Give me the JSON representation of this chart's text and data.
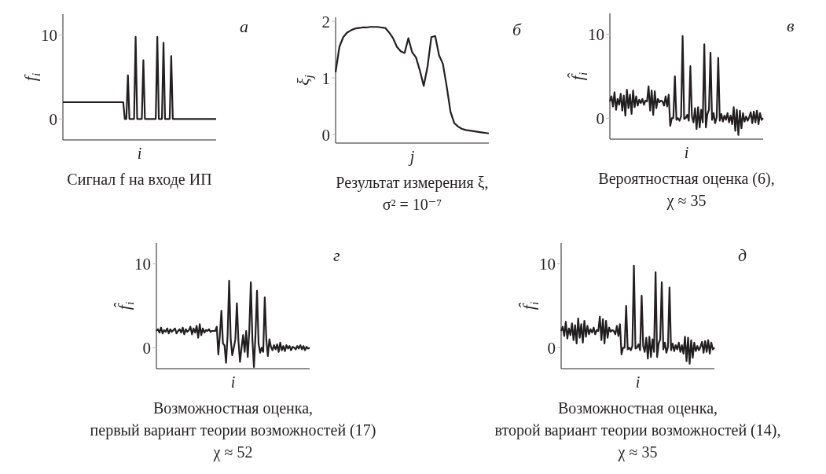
{
  "chart_data": [
    {
      "type": "line",
      "title": "Сигнал f на входе ИП",
      "xlabel": "i",
      "ylabel": "f$_{i}$",
      "annotations": [
        "а"
      ],
      "ylim": [
        -2.5,
        12.5
      ],
      "yticks": [
        0,
        10
      ],
      "categories": [
        null,
        null,
        null,
        null,
        null,
        null,
        null,
        null,
        null,
        null,
        null,
        null,
        null,
        null,
        null,
        null,
        null,
        null,
        null,
        null,
        null,
        null,
        null,
        null,
        null,
        null,
        null,
        null,
        null,
        null,
        null,
        null,
        null,
        null,
        null,
        null,
        null,
        null,
        null,
        null,
        null,
        null,
        null,
        null,
        null,
        null,
        null,
        null,
        null,
        null,
        null,
        null,
        null,
        null,
        null,
        null,
        null,
        null,
        null,
        null,
        null,
        null,
        null,
        null,
        null,
        null,
        null,
        null,
        null,
        null,
        null,
        null,
        null,
        null,
        null,
        null,
        null,
        null,
        null,
        null,
        null,
        null,
        null,
        null,
        null,
        null,
        null,
        null,
        null,
        null,
        null,
        null,
        null,
        null,
        null,
        null,
        null,
        null,
        null,
        null
      ],
      "series": [
        {
          "color": "#231f20",
          "values": [
            2,
            2,
            2,
            2,
            2,
            2,
            2,
            2,
            2,
            2,
            2,
            2,
            2,
            2,
            2,
            2,
            2,
            2,
            2,
            2,
            2,
            2,
            2,
            2,
            2,
            2,
            2,
            2,
            2,
            2,
            2,
            2,
            2,
            2,
            2,
            2,
            2,
            2,
            2,
            2,
            0,
            0,
            5.2,
            0,
            0,
            0,
            0,
            9.8,
            0,
            0,
            0,
            0,
            7,
            0,
            0,
            0,
            0,
            0,
            0,
            0,
            0,
            9.8,
            0,
            0,
            0,
            9.1,
            0,
            0,
            0,
            0,
            7.5,
            0,
            0,
            0,
            0,
            0,
            0,
            0,
            0,
            0,
            0,
            0,
            0,
            0,
            0,
            0,
            0,
            0,
            0,
            0,
            0,
            0,
            0,
            0,
            0,
            0,
            0,
            0,
            0,
            0
          ]
        }
      ]
    },
    {
      "type": "line",
      "title": "Результат измерения ξ,\nσ² = 10⁻⁷",
      "xlabel": "j",
      "ylabel": "ξ$_{j}$",
      "annotations": [
        "б"
      ],
      "ylim": [
        -0.15,
        2.07
      ],
      "yticks": [
        0,
        1,
        2
      ],
      "categories": [
        null,
        null,
        null,
        null,
        null,
        null,
        null,
        null,
        null,
        null,
        null,
        null,
        null,
        null,
        null,
        null,
        null,
        null,
        null,
        null,
        null,
        null,
        null,
        null,
        null,
        null,
        null,
        null,
        null,
        null,
        null,
        null,
        null,
        null,
        null,
        null,
        null,
        null,
        null,
        null,
        null
      ],
      "series": [
        {
          "color": "#231f20",
          "values": [
            1.1,
            1.55,
            1.72,
            1.8,
            1.84,
            1.87,
            1.88,
            1.89,
            1.89,
            1.9,
            1.9,
            1.9,
            1.89,
            1.88,
            1.8,
            1.7,
            1.55,
            1.47,
            1.44,
            1.7,
            1.45,
            1.36,
            1.13,
            0.86,
            1.2,
            1.72,
            1.74,
            1.4,
            1.25,
            0.85,
            0.4,
            0.2,
            0.14,
            0.1,
            0.08,
            0.07,
            0.06,
            0.05,
            0.04,
            0.03,
            0.02
          ]
        }
      ]
    },
    {
      "type": "line",
      "title": "Вероятностная оценка (6),\nχ ≈ 35",
      "xlabel": "i",
      "ylabel": "f̂$_{i}$",
      "annotations": [
        "в"
      ],
      "ylim": [
        -2.5,
        12.5
      ],
      "yticks": [
        0,
        10
      ],
      "categories": [
        null,
        null,
        null,
        null,
        null,
        null,
        null,
        null,
        null,
        null,
        null,
        null,
        null,
        null,
        null,
        null,
        null,
        null,
        null,
        null,
        null,
        null,
        null,
        null,
        null,
        null,
        null,
        null,
        null,
        null,
        null,
        null,
        null,
        null,
        null,
        null,
        null,
        null,
        null,
        null,
        null,
        null,
        null,
        null,
        null,
        null,
        null,
        null,
        null,
        null,
        null,
        null,
        null,
        null,
        null,
        null,
        null,
        null,
        null,
        null,
        null,
        null,
        null,
        null,
        null,
        null,
        null,
        null,
        null,
        null,
        null,
        null,
        null,
        null,
        null,
        null,
        null,
        null,
        null,
        null,
        null,
        null,
        null,
        null,
        null,
        null,
        null,
        null,
        null,
        null,
        null,
        null,
        null,
        null,
        null,
        null,
        null,
        null,
        null,
        null
      ],
      "series": [
        {
          "color": "#231f20",
          "values": [
            2,
            2.6,
            1.4,
            3.1,
            1,
            2.3,
            1.6,
            2.9,
            0.9,
            2.7,
            0.3,
            3.4,
            1.2,
            2.8,
            0.5,
            3.3,
            1.3,
            2.6,
            1.5,
            2.2,
            1.8,
            2.3,
            1.6,
            2.1,
            2,
            3.8,
            0.9,
            3.3,
            0.4,
            3.2,
            1.2,
            2.3,
            1.9,
            2.1,
            2,
            1.5,
            2.6,
            1.4,
            2.8,
            -0.9,
            0,
            0,
            5,
            -0.2,
            0,
            -0.3,
            0.2,
            9.8,
            -0.1,
            0,
            0.4,
            -0.3,
            6.2,
            0.2,
            -0.5,
            1.2,
            -1.3,
            1.3,
            -1.1,
            1,
            -0.5,
            8.8,
            -1.1,
            0.5,
            1,
            7.8,
            -0.2,
            0.6,
            -0.6,
            0.1,
            7.2,
            -0.3,
            0.5,
            -0.4,
            0.3,
            -0.2,
            0.6,
            -0.5,
            0.3,
            -0.7,
            1.3,
            -1.5,
            1,
            -2,
            0.9,
            -1.2,
            0.6,
            -0.4,
            0.2,
            -0.3,
            0.1,
            0.7,
            -0.6,
            0.8,
            -0.5,
            0.9,
            -0.7,
            0.6,
            -0.2,
            0
          ]
        }
      ]
    },
    {
      "type": "line",
      "title": "Возможностная оценка,\nпервый вариант теории возможностей (17)\nχ ≈ 52",
      "xlabel": "i",
      "ylabel": "f̂$_{i}$",
      "annotations": [
        "г"
      ],
      "ylim": [
        -2.5,
        12.5
      ],
      "yticks": [
        0,
        10
      ],
      "categories": [
        null,
        null,
        null,
        null,
        null,
        null,
        null,
        null,
        null,
        null,
        null,
        null,
        null,
        null,
        null,
        null,
        null,
        null,
        null,
        null,
        null,
        null,
        null,
        null,
        null,
        null,
        null,
        null,
        null,
        null,
        null,
        null,
        null,
        null,
        null,
        null,
        null,
        null,
        null,
        null,
        null,
        null,
        null,
        null,
        null,
        null,
        null,
        null,
        null,
        null,
        null,
        null,
        null,
        null,
        null,
        null,
        null,
        null,
        null,
        null,
        null,
        null,
        null,
        null,
        null,
        null,
        null,
        null,
        null,
        null,
        null,
        null,
        null,
        null,
        null,
        null,
        null,
        null,
        null,
        null,
        null,
        null,
        null,
        null,
        null,
        null,
        null,
        null,
        null,
        null,
        null,
        null,
        null,
        null,
        null,
        null,
        null,
        null,
        null,
        null
      ],
      "series": [
        {
          "color": "#231f20",
          "values": [
            2,
            2.2,
            1.8,
            2.4,
            1.7,
            2.1,
            1.9,
            2.3,
            1.7,
            2.2,
            1.9,
            2.1,
            2.3,
            1.7,
            2,
            2.2,
            1.8,
            2.4,
            1.6,
            2.2,
            1.9,
            2.1,
            2.5,
            1.6,
            2.3,
            1.8,
            2.6,
            1.2,
            2.8,
            1.5,
            2.3,
            1.8,
            2.1,
            2,
            2.2,
            1.9,
            2,
            2,
            2,
            2.5,
            -0.8,
            1.5,
            4.4,
            0.5,
            0.3,
            -1.8,
            1.5,
            8,
            1,
            -0.9,
            0,
            1,
            5.3,
            0.8,
            -1.7,
            0,
            1.5,
            -0.5,
            2,
            -1.1,
            2,
            7.8,
            1,
            -2.3,
            1.5,
            6.8,
            0.5,
            -0.6,
            0,
            -0.5,
            6,
            1,
            -1,
            1,
            0.1,
            -0.3,
            0.3,
            -0.2,
            0.4,
            -0.5,
            0.6,
            -0.3,
            0.2,
            -0.4,
            0.3,
            -0.1,
            0.2,
            -0.3,
            0.1,
            0,
            -0.2,
            0.2,
            -0.1,
            0.3,
            -0.2,
            0.2,
            -0.3,
            0.1,
            -0.1,
            0
          ]
        }
      ]
    },
    {
      "type": "line",
      "title": "Возможностная оценка,\nвторой вариант теории возможностей (14),\nχ ≈ 35",
      "xlabel": "i",
      "ylabel": "f̂$_{i}$",
      "annotations": [
        "д"
      ],
      "ylim": [
        -2.5,
        12.5
      ],
      "yticks": [
        0,
        10
      ],
      "categories": [
        null,
        null,
        null,
        null,
        null,
        null,
        null,
        null,
        null,
        null,
        null,
        null,
        null,
        null,
        null,
        null,
        null,
        null,
        null,
        null,
        null,
        null,
        null,
        null,
        null,
        null,
        null,
        null,
        null,
        null,
        null,
        null,
        null,
        null,
        null,
        null,
        null,
        null,
        null,
        null,
        null,
        null,
        null,
        null,
        null,
        null,
        null,
        null,
        null,
        null,
        null,
        null,
        null,
        null,
        null,
        null,
        null,
        null,
        null,
        null,
        null,
        null,
        null,
        null,
        null,
        null,
        null,
        null,
        null,
        null,
        null,
        null,
        null,
        null,
        null,
        null,
        null,
        null,
        null,
        null,
        null,
        null,
        null,
        null,
        null,
        null,
        null,
        null,
        null,
        null,
        null,
        null,
        null,
        null,
        null,
        null,
        null,
        null,
        null,
        null
      ],
      "series": [
        {
          "color": "#231f20",
          "values": [
            2,
            2.5,
            1.4,
            3.1,
            1.1,
            2.3,
            1.5,
            2.9,
            0.9,
            2.7,
            0.5,
            3.5,
            1.2,
            2.8,
            0.6,
            3.2,
            1.3,
            2.6,
            1.6,
            2.2,
            1.8,
            2.4,
            1.6,
            2.1,
            2,
            3.7,
            0.9,
            3.4,
            0.5,
            3.2,
            1.2,
            2.4,
            1.9,
            2.1,
            2,
            1.6,
            2.6,
            1.4,
            2.8,
            -0.8,
            0,
            0,
            5,
            -0.2,
            0,
            -0.3,
            0.2,
            9.8,
            -0.1,
            0,
            0.4,
            -0.3,
            6.2,
            0.2,
            -0.5,
            1.2,
            -1.3,
            1.3,
            -1.1,
            1,
            -0.5,
            9,
            -1.1,
            0.5,
            1,
            7.8,
            -0.2,
            0.6,
            -0.6,
            0.1,
            7.2,
            -0.3,
            0.5,
            -0.4,
            0.3,
            -0.2,
            0.6,
            -0.5,
            0.3,
            -0.7,
            1.3,
            -1.6,
            1.2,
            -1.9,
            0.9,
            -1.2,
            0.6,
            -0.4,
            0.2,
            -0.3,
            0.1,
            0.7,
            -0.6,
            0.8,
            -0.5,
            0.9,
            -0.7,
            0.6,
            -0.2,
            0
          ]
        }
      ]
    }
  ]
}
